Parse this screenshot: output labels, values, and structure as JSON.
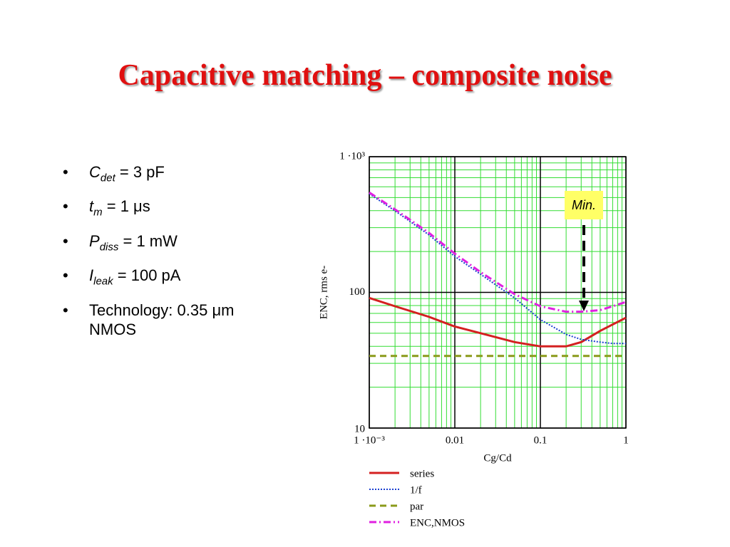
{
  "slide": {
    "title": "Capacitive matching – composite noise",
    "bullets": [
      {
        "symbol": "C",
        "sub": "det",
        "text": "= 3 pF"
      },
      {
        "symbol": "t",
        "sub": "m",
        "text": "= 1 μs"
      },
      {
        "symbol": "P",
        "sub": "diss",
        "text": "= 1 mW"
      },
      {
        "symbol": "I",
        "sub": "leak",
        "text": "= 100 pA"
      },
      {
        "text": "Technology: 0.35 μm NMOS"
      }
    ]
  },
  "chart_data": {
    "type": "line",
    "x_label": "Cg/Cd",
    "y_label": "ENC, rms e-",
    "x": [
      0.001,
      0.002,
      0.005,
      0.01,
      0.02,
      0.05,
      0.1,
      0.2,
      0.3,
      0.5,
      0.7,
      1
    ],
    "series": [
      {
        "name": "series",
        "color": "#d42020",
        "dash": "solid",
        "values": [
          91,
          79,
          66,
          56,
          50,
          43,
          40,
          40,
          43,
          52,
          58,
          65
        ]
      },
      {
        "name": "1/f",
        "color": "#1a3fd0",
        "dash": "dotted",
        "values": [
          533,
          399,
          265,
          184,
          136,
          91,
          63,
          49,
          45,
          43,
          42,
          42
        ]
      },
      {
        "name": "par",
        "color": "#8a9a1a",
        "dash": "dashed",
        "values": [
          34,
          34,
          34,
          34,
          34,
          34,
          34,
          34,
          34,
          34,
          34,
          34
        ]
      },
      {
        "name": "ENC,NMOS",
        "color": "#e020e0",
        "dash": "dashdot",
        "values": [
          545,
          409,
          274,
          193,
          141,
          97,
          79,
          72,
          72,
          74,
          79,
          85
        ]
      }
    ],
    "xlim": [
      0.001,
      1
    ],
    "ylim": [
      10,
      1000
    ],
    "log_x": true,
    "log_y": true,
    "grid": true,
    "xticks": [
      {
        "value": 0.001,
        "label": "1 ·10⁻³"
      },
      0.01,
      0.1,
      1
    ],
    "yticks": [
      10,
      100,
      {
        "value": 1000,
        "label": "1 ·10³"
      }
    ],
    "annotation": "Min.",
    "legend": "bottom"
  }
}
